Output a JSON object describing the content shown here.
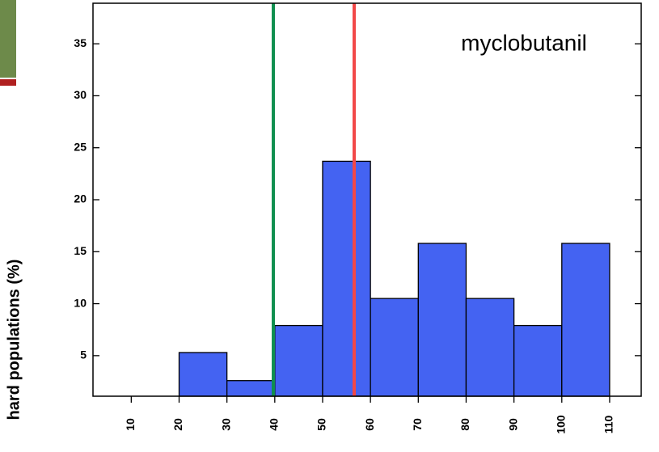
{
  "chart_data": {
    "type": "histogram",
    "y_label": "hard populations (%)",
    "annotation": "myclobutanil",
    "bins": [
      20,
      30,
      40,
      50,
      60,
      70,
      80,
      90,
      100,
      110
    ],
    "values": [
      5.3,
      2.6,
      7.9,
      23.7,
      10.5,
      15.8,
      10.5,
      7.9,
      15.8
    ],
    "color": "#4463f2",
    "xlim": [
      2,
      116.6
    ],
    "ylim": [
      1.1,
      38.9
    ],
    "xticks": [
      10,
      20,
      30,
      40,
      50,
      60,
      70,
      80,
      90,
      100,
      110
    ],
    "yticks": [
      5,
      10,
      15,
      20,
      25,
      30,
      35
    ],
    "reference_lines": [
      {
        "value": 39.7,
        "color": "#0f8f4f"
      },
      {
        "value": 56.6,
        "color": "#f24848"
      }
    ]
  }
}
